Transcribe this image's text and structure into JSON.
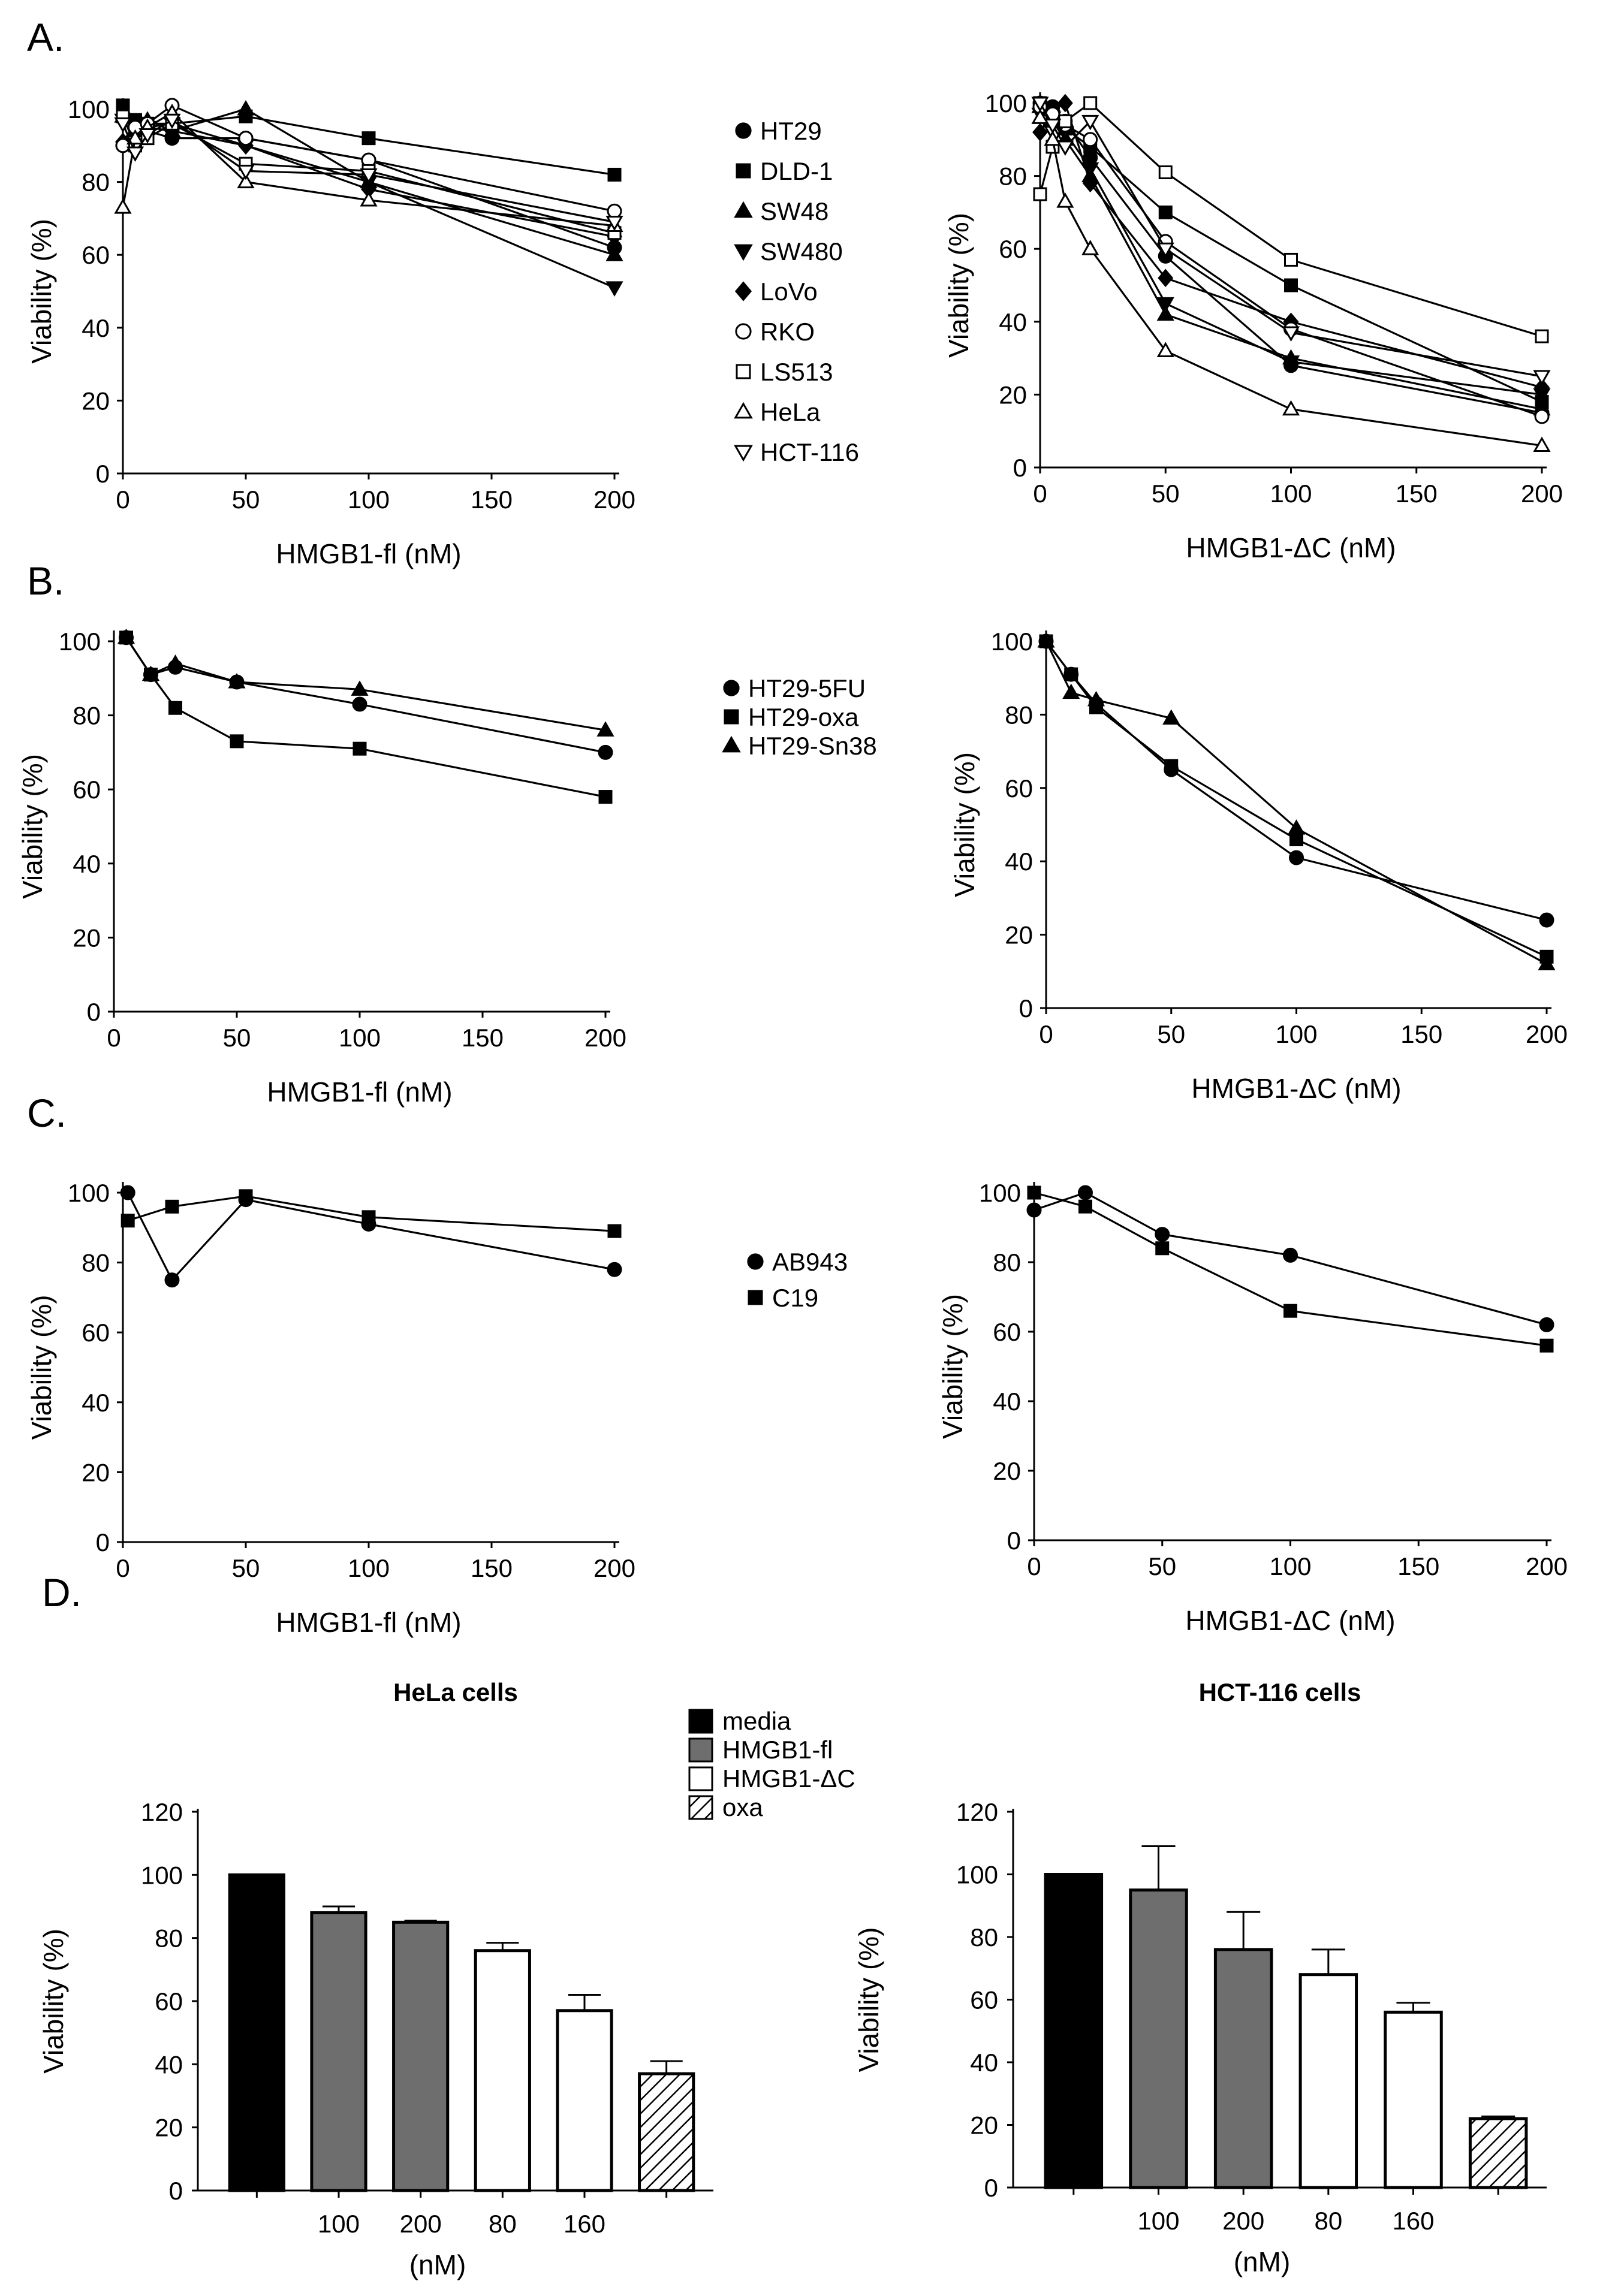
{
  "panels": {
    "a": "A.",
    "b": "B.",
    "c": "C.",
    "d": "D."
  },
  "chart_data": [
    {
      "id": "A-left",
      "type": "line",
      "panel": "A",
      "xlabel": "HMGB1-fl (nM)",
      "ylabel": "Viability (%)",
      "xlim": [
        0,
        200
      ],
      "ylim": [
        0,
        100
      ],
      "xticks": [
        0,
        50,
        100,
        150,
        200
      ],
      "yticks": [
        0,
        20,
        40,
        60,
        80,
        100
      ],
      "legend": "right",
      "series": [
        {
          "name": "HT29",
          "marker": "filled-circle",
          "x": [
            0,
            5,
            10,
            20,
            50,
            100,
            200
          ],
          "y": [
            90,
            95,
            94,
            92,
            92,
            86,
            62
          ]
        },
        {
          "name": "DLD-1",
          "marker": "filled-square",
          "x": [
            0,
            5,
            10,
            20,
            50,
            100,
            200
          ],
          "y": [
            101,
            97,
            96,
            96,
            98,
            92,
            82
          ]
        },
        {
          "name": "SW48",
          "marker": "filled-triangle-up",
          "x": [
            0,
            5,
            10,
            20,
            50,
            100,
            200
          ],
          "y": [
            98,
            94,
            97,
            94,
            100,
            80,
            60
          ]
        },
        {
          "name": "SW480",
          "marker": "filled-triangle-down",
          "x": [
            0,
            5,
            10,
            20,
            50,
            100,
            200
          ],
          "y": [
            97,
            96,
            95,
            96,
            90,
            80,
            51
          ]
        },
        {
          "name": "LoVo",
          "marker": "filled-diamond",
          "x": [
            0,
            5,
            10,
            20,
            50,
            100,
            200
          ],
          "y": [
            91,
            96,
            95,
            94,
            90,
            78,
            65
          ]
        },
        {
          "name": "RKO",
          "marker": "open-circle",
          "x": [
            0,
            5,
            10,
            20,
            50,
            100,
            200
          ],
          "y": [
            90,
            95,
            96,
            101,
            92,
            86,
            72
          ]
        },
        {
          "name": "LS513",
          "marker": "open-square",
          "x": [
            0,
            5,
            10,
            20,
            50,
            100,
            200
          ],
          "y": [
            98,
            90,
            92,
            96,
            85,
            83,
            66
          ]
        },
        {
          "name": "HeLa",
          "marker": "open-triangle-up",
          "x": [
            0,
            5,
            10,
            20,
            50,
            100,
            200
          ],
          "y": [
            73,
            92,
            95,
            99,
            80,
            75,
            68
          ]
        },
        {
          "name": "HCT-116",
          "marker": "open-triangle-down",
          "x": [
            0,
            5,
            10,
            20,
            50,
            100,
            200
          ],
          "y": [
            96,
            88,
            93,
            97,
            83,
            82,
            69
          ]
        }
      ]
    },
    {
      "id": "A-right",
      "type": "line",
      "panel": "A",
      "xlabel": "HMGB1-ΔC (nM)",
      "ylabel": "Viability (%)",
      "xlim": [
        0,
        200
      ],
      "ylim": [
        0,
        100
      ],
      "xticks": [
        0,
        50,
        100,
        150,
        200
      ],
      "yticks": [
        0,
        20,
        40,
        60,
        80,
        100
      ],
      "series": [
        {
          "name": "HT29",
          "marker": "filled-circle",
          "x": [
            0,
            5,
            10,
            20,
            50,
            100,
            200
          ],
          "y": [
            100,
            99,
            95,
            85,
            58,
            28,
            15
          ]
        },
        {
          "name": "DLD-1",
          "marker": "filled-square",
          "x": [
            0,
            5,
            10,
            20,
            50,
            100,
            200
          ],
          "y": [
            100,
            97,
            93,
            88,
            70,
            50,
            18
          ]
        },
        {
          "name": "SW48",
          "marker": "filled-triangle-up",
          "x": [
            0,
            5,
            10,
            20,
            50,
            100,
            200
          ],
          "y": [
            99,
            95,
            90,
            80,
            42,
            30,
            16
          ]
        },
        {
          "name": "SW480",
          "marker": "filled-triangle-down",
          "x": [
            0,
            5,
            10,
            20,
            50,
            100,
            200
          ],
          "y": [
            97,
            96,
            92,
            82,
            45,
            29,
            20
          ]
        },
        {
          "name": "LoVo",
          "marker": "filled-diamond",
          "x": [
            0,
            5,
            10,
            20,
            50,
            100,
            200
          ],
          "y": [
            92,
            98,
            100,
            78,
            52,
            40,
            22
          ]
        },
        {
          "name": "RKO",
          "marker": "open-circle",
          "x": [
            0,
            5,
            10,
            20,
            50,
            100,
            200
          ],
          "y": [
            99,
            97,
            94,
            90,
            62,
            38,
            14
          ]
        },
        {
          "name": "LS513",
          "marker": "open-square",
          "x": [
            0,
            5,
            10,
            20,
            50,
            100,
            200
          ],
          "y": [
            75,
            88,
            95,
            100,
            81,
            57,
            36
          ]
        },
        {
          "name": "HeLa",
          "marker": "open-triangle-up",
          "x": [
            0,
            5,
            10,
            20,
            50,
            100,
            200
          ],
          "y": [
            96,
            90,
            73,
            60,
            32,
            16,
            6
          ]
        },
        {
          "name": "HCT-116",
          "marker": "open-triangle-down",
          "x": [
            0,
            5,
            10,
            20,
            50,
            100,
            200
          ],
          "y": [
            100,
            94,
            88,
            95,
            60,
            37,
            25
          ]
        }
      ]
    },
    {
      "id": "B-left",
      "type": "line",
      "panel": "B",
      "xlabel": "HMGB1-fl (nM)",
      "ylabel": "Viability (%)",
      "xlim": [
        0,
        200
      ],
      "ylim": [
        0,
        100
      ],
      "xticks": [
        0,
        50,
        100,
        150,
        200
      ],
      "yticks": [
        0,
        20,
        40,
        60,
        80,
        100
      ],
      "legend": "right",
      "series": [
        {
          "name": "HT29-5FU",
          "marker": "filled-circle",
          "x": [
            5,
            15,
            25,
            50,
            100,
            200
          ],
          "y": [
            101,
            91,
            93,
            89,
            83,
            70
          ]
        },
        {
          "name": "HT29-oxa",
          "marker": "filled-square",
          "x": [
            5,
            15,
            25,
            50,
            100,
            200
          ],
          "y": [
            101,
            91,
            82,
            73,
            71,
            58
          ]
        },
        {
          "name": "HT29-Sn38",
          "marker": "filled-triangle-up",
          "x": [
            5,
            15,
            25,
            50,
            100,
            200
          ],
          "y": [
            101,
            91,
            94,
            89,
            87,
            76
          ]
        }
      ]
    },
    {
      "id": "B-right",
      "type": "line",
      "panel": "B",
      "xlabel": "HMGB1-ΔC (nM)",
      "ylabel": "Viability (%)",
      "xlim": [
        0,
        200
      ],
      "ylim": [
        0,
        100
      ],
      "xticks": [
        0,
        50,
        100,
        150,
        200
      ],
      "yticks": [
        0,
        20,
        40,
        60,
        80,
        100
      ],
      "series": [
        {
          "name": "HT29-5FU",
          "marker": "filled-circle",
          "x": [
            0,
            10,
            20,
            50,
            100,
            200
          ],
          "y": [
            100,
            91,
            83,
            65,
            41,
            24
          ]
        },
        {
          "name": "HT29-oxa",
          "marker": "filled-square",
          "x": [
            0,
            10,
            20,
            50,
            100,
            200
          ],
          "y": [
            100,
            91,
            82,
            66,
            46,
            14
          ]
        },
        {
          "name": "HT29-Sn38",
          "marker": "filled-triangle-up",
          "x": [
            0,
            10,
            20,
            50,
            100,
            200
          ],
          "y": [
            100,
            86,
            84,
            79,
            49,
            12
          ]
        }
      ]
    },
    {
      "id": "C-left",
      "type": "line",
      "panel": "C",
      "xlabel": "HMGB1-fl (nM)",
      "ylabel": "Viability (%)",
      "xlim": [
        0,
        200
      ],
      "ylim": [
        0,
        100
      ],
      "xticks": [
        0,
        50,
        100,
        150,
        200
      ],
      "yticks": [
        0,
        20,
        40,
        60,
        80,
        100
      ],
      "legend": "right",
      "series": [
        {
          "name": "AB943",
          "marker": "filled-circle",
          "x": [
            2,
            20,
            50,
            100,
            200
          ],
          "y": [
            100,
            75,
            98,
            91,
            78
          ]
        },
        {
          "name": "C19",
          "marker": "filled-square",
          "x": [
            2,
            20,
            50,
            100,
            200
          ],
          "y": [
            92,
            96,
            99,
            93,
            89
          ]
        }
      ]
    },
    {
      "id": "C-right",
      "type": "line",
      "panel": "C",
      "xlabel": "HMGB1-ΔC (nM)",
      "ylabel": "Viability (%)",
      "xlim": [
        0,
        200
      ],
      "ylim": [
        0,
        100
      ],
      "xticks": [
        0,
        50,
        100,
        150,
        200
      ],
      "yticks": [
        0,
        20,
        40,
        60,
        80,
        100
      ],
      "series": [
        {
          "name": "AB943",
          "marker": "filled-circle",
          "x": [
            0,
            20,
            50,
            100,
            200
          ],
          "y": [
            95,
            100,
            88,
            82,
            62
          ]
        },
        {
          "name": "C19",
          "marker": "filled-square",
          "x": [
            0,
            20,
            50,
            100,
            200
          ],
          "y": [
            100,
            96,
            84,
            66,
            56
          ]
        }
      ]
    },
    {
      "id": "D-left",
      "type": "bar",
      "panel": "D",
      "title": "HeLa cells",
      "ylabel": "Viability (%)",
      "xlabel": "(nM)",
      "ylim": [
        0,
        120
      ],
      "yticks": [
        0,
        20,
        40,
        60,
        80,
        100,
        120
      ],
      "categories": [
        "",
        "100",
        "200",
        "80",
        "160",
        ""
      ],
      "groups": [
        "media",
        "HMGB1-fl",
        "HMGB1-fl",
        "HMGB1-ΔC",
        "HMGB1-ΔC",
        "oxa"
      ],
      "values": [
        100,
        88,
        85,
        76,
        57,
        37
      ],
      "errors": [
        0,
        2,
        0.5,
        2.5,
        5,
        4
      ]
    },
    {
      "id": "D-right",
      "type": "bar",
      "panel": "D",
      "title": "HCT-116 cells",
      "ylabel": "Viability (%)",
      "xlabel": "(nM)",
      "ylim": [
        0,
        120
      ],
      "yticks": [
        0,
        20,
        40,
        60,
        80,
        100,
        120
      ],
      "categories": [
        "",
        "100",
        "200",
        "80",
        "160",
        ""
      ],
      "groups": [
        "media",
        "HMGB1-fl",
        "HMGB1-fl",
        "HMGB1-ΔC",
        "HMGB1-ΔC",
        "oxa"
      ],
      "values": [
        100,
        95,
        76,
        68,
        56,
        22
      ],
      "errors": [
        0,
        14,
        12,
        8,
        3,
        0.7
      ]
    }
  ],
  "bar_legend": [
    {
      "name": "media",
      "fill": "black"
    },
    {
      "name": "HMGB1-fl",
      "fill": "gray"
    },
    {
      "name": "HMGB1-ΔC",
      "fill": "white"
    },
    {
      "name": "oxa",
      "fill": "hatch"
    }
  ],
  "colors": {
    "ink": "#000000",
    "gray_bar": "#6e6e6e",
    "background": "#ffffff"
  }
}
